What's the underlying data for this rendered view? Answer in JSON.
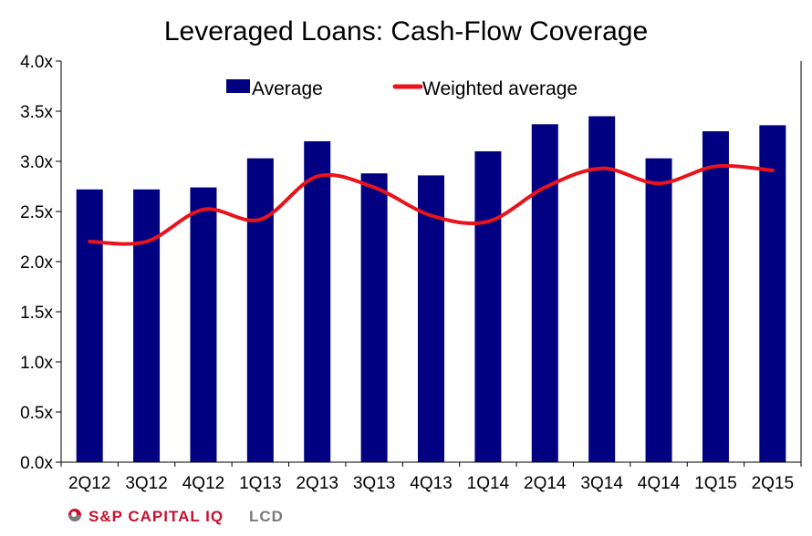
{
  "chart_data": {
    "type": "bar",
    "title": "Leveraged Loans: Cash-Flow Coverage",
    "categories": [
      "2Q12",
      "3Q12",
      "4Q12",
      "1Q13",
      "2Q13",
      "3Q13",
      "4Q13",
      "1Q14",
      "2Q14",
      "3Q14",
      "4Q14",
      "1Q15",
      "2Q15"
    ],
    "series": [
      {
        "name": "Average",
        "type": "bar",
        "color": "#000080",
        "values": [
          2.72,
          2.72,
          2.74,
          3.03,
          3.2,
          2.88,
          2.86,
          3.1,
          3.37,
          3.45,
          3.03,
          3.3,
          3.36
        ]
      },
      {
        "name": "Weighted average",
        "type": "line",
        "color": "#e8131b",
        "values": [
          2.2,
          2.2,
          2.52,
          2.42,
          2.85,
          2.74,
          2.46,
          2.4,
          2.74,
          2.93,
          2.78,
          2.95,
          2.91
        ]
      }
    ],
    "ylim": [
      0,
      4.0
    ],
    "yticks": [
      "0.0x",
      "0.5x",
      "1.0x",
      "1.5x",
      "2.0x",
      "2.5x",
      "3.0x",
      "3.5x",
      "4.0x"
    ],
    "ytick_values": [
      0,
      0.5,
      1.0,
      1.5,
      2.0,
      2.5,
      3.0,
      3.5,
      4.0
    ],
    "grid": false,
    "legend_position": "top-center"
  },
  "footer": {
    "brand_a": "S&P CAPITAL IQ",
    "brand_b": "LCD",
    "brand_color_a": "#c8102e",
    "brand_color_b": "#7a7a7a",
    "logo_icon": "sp-logo-icon"
  }
}
